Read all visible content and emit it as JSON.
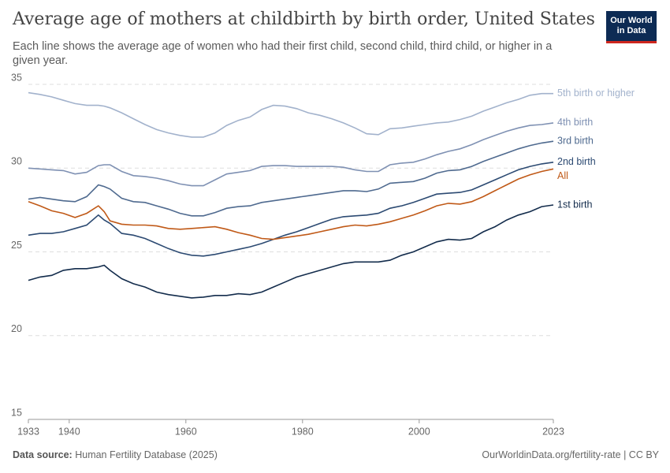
{
  "chart_data": {
    "type": "line",
    "title": "Average age of mothers at childbirth by birth order, United States",
    "subtitle": "Each line shows the average age of women who had their first child, second child, third child, or higher in a given year.",
    "logo": [
      "Our World",
      "in Data"
    ],
    "source_label": "Data source:",
    "source": "Human Fertility Database (2025)",
    "credit": "OurWorldinData.org/fertility-rate | CC BY",
    "xlim": [
      1933,
      2023
    ],
    "xticks": [
      1933,
      1940,
      1960,
      1980,
      2000,
      2023
    ],
    "ylim": [
      15,
      35
    ],
    "yticks": [
      15,
      20,
      25,
      30,
      35
    ],
    "grid": true,
    "x": [
      1933,
      1935,
      1937,
      1939,
      1941,
      1943,
      1945,
      1946,
      1947,
      1949,
      1951,
      1953,
      1955,
      1957,
      1959,
      1961,
      1963,
      1965,
      1967,
      1969,
      1971,
      1973,
      1975,
      1977,
      1979,
      1981,
      1983,
      1985,
      1987,
      1989,
      1991,
      1993,
      1995,
      1997,
      1999,
      2001,
      2003,
      2005,
      2007,
      2009,
      2011,
      2013,
      2015,
      2017,
      2019,
      2021,
      2023
    ],
    "series": [
      {
        "name": "5th birth or higher",
        "color": "#a2b2cc",
        "values": [
          34.5,
          34.4,
          34.25,
          34.05,
          33.85,
          33.75,
          33.75,
          33.7,
          33.6,
          33.3,
          32.95,
          32.6,
          32.3,
          32.1,
          31.95,
          31.85,
          31.85,
          32.1,
          32.55,
          32.85,
          33.05,
          33.5,
          33.75,
          33.7,
          33.55,
          33.3,
          33.15,
          32.95,
          32.7,
          32.4,
          32.05,
          32.0,
          32.35,
          32.4,
          32.5,
          32.6,
          32.7,
          32.75,
          32.9,
          33.1,
          33.4,
          33.65,
          33.9,
          34.1,
          34.35,
          34.45,
          34.45
        ]
      },
      {
        "name": "4th birth",
        "color": "#7f91b3",
        "values": [
          30.0,
          29.95,
          29.9,
          29.85,
          29.65,
          29.75,
          30.15,
          30.2,
          30.2,
          29.8,
          29.55,
          29.5,
          29.4,
          29.25,
          29.05,
          28.95,
          28.95,
          29.3,
          29.65,
          29.75,
          29.85,
          30.1,
          30.15,
          30.15,
          30.1,
          30.1,
          30.1,
          30.1,
          30.05,
          29.9,
          29.8,
          29.8,
          30.2,
          30.3,
          30.35,
          30.55,
          30.8,
          31.0,
          31.15,
          31.4,
          31.7,
          31.95,
          32.2,
          32.4,
          32.55,
          32.6,
          32.7
        ]
      },
      {
        "name": "3rd birth",
        "color": "#4f6a8f",
        "values": [
          28.15,
          28.25,
          28.15,
          28.05,
          28.0,
          28.3,
          29.0,
          28.9,
          28.75,
          28.2,
          28.0,
          27.95,
          27.75,
          27.55,
          27.3,
          27.15,
          27.15,
          27.35,
          27.6,
          27.7,
          27.75,
          27.95,
          28.05,
          28.15,
          28.25,
          28.35,
          28.45,
          28.55,
          28.65,
          28.65,
          28.6,
          28.75,
          29.1,
          29.15,
          29.2,
          29.4,
          29.7,
          29.85,
          29.9,
          30.1,
          30.4,
          30.65,
          30.9,
          31.15,
          31.35,
          31.5,
          31.6
        ]
      },
      {
        "name": "2nd birth",
        "color": "#2c4a72",
        "values": [
          26.0,
          26.1,
          26.1,
          26.2,
          26.4,
          26.6,
          27.2,
          26.9,
          26.7,
          26.1,
          26.0,
          25.8,
          25.5,
          25.2,
          24.95,
          24.8,
          24.75,
          24.85,
          25.0,
          25.15,
          25.3,
          25.5,
          25.75,
          26.0,
          26.2,
          26.45,
          26.7,
          26.95,
          27.1,
          27.15,
          27.2,
          27.3,
          27.6,
          27.75,
          27.95,
          28.2,
          28.45,
          28.5,
          28.55,
          28.7,
          29.0,
          29.3,
          29.6,
          29.9,
          30.1,
          30.25,
          30.35
        ]
      },
      {
        "name": "All",
        "color": "#c05917",
        "values": [
          28.0,
          27.75,
          27.45,
          27.3,
          27.05,
          27.3,
          27.75,
          27.4,
          26.85,
          26.65,
          26.6,
          26.6,
          26.55,
          26.4,
          26.35,
          26.4,
          26.45,
          26.5,
          26.35,
          26.15,
          26.0,
          25.8,
          25.75,
          25.85,
          25.95,
          26.05,
          26.2,
          26.35,
          26.5,
          26.6,
          26.55,
          26.65,
          26.8,
          27.0,
          27.2,
          27.45,
          27.75,
          27.9,
          27.85,
          28.0,
          28.3,
          28.65,
          29.0,
          29.35,
          29.6,
          29.8,
          29.95
        ]
      },
      {
        "name": "1st birth",
        "color": "#132c4c",
        "values": [
          23.3,
          23.5,
          23.6,
          23.9,
          24.0,
          24.0,
          24.1,
          24.2,
          23.9,
          23.4,
          23.1,
          22.9,
          22.6,
          22.45,
          22.35,
          22.25,
          22.3,
          22.4,
          22.4,
          22.5,
          22.45,
          22.6,
          22.9,
          23.2,
          23.5,
          23.7,
          23.9,
          24.1,
          24.3,
          24.4,
          24.4,
          24.4,
          24.5,
          24.8,
          25.0,
          25.3,
          25.6,
          25.75,
          25.7,
          25.8,
          26.2,
          26.5,
          26.9,
          27.2,
          27.4,
          27.7,
          27.8
        ]
      }
    ]
  }
}
